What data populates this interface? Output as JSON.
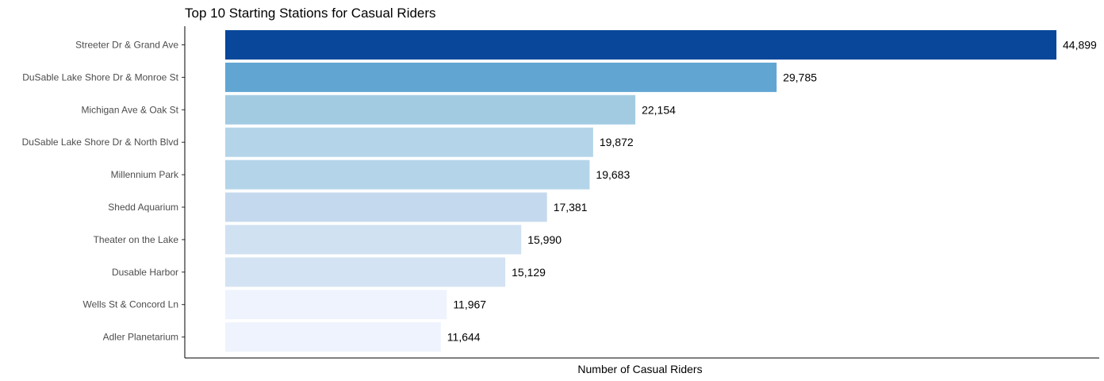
{
  "chart_data": {
    "type": "bar",
    "orientation": "horizontal",
    "title": "Top 10 Starting Stations for Casual Riders",
    "xlabel": "Number of Casual Riders",
    "ylabel": "",
    "grid": false,
    "legend": "none",
    "categories": [
      "Streeter Dr & Grand Ave",
      "DuSable Lake Shore Dr & Monroe St",
      "Michigan Ave & Oak St",
      "DuSable Lake Shore Dr & North Blvd",
      "Millennium Park",
      "Shedd Aquarium",
      "Theater on the Lake",
      "Dusable Harbor",
      "Wells St & Concord Ln",
      "Adler Planetarium"
    ],
    "values": [
      44899,
      29785,
      22154,
      19872,
      19683,
      17381,
      15990,
      15129,
      11967,
      11644
    ],
    "data_labels": [
      "44,899",
      "29,785",
      "22,154",
      "19,872",
      "19,683",
      "17,381",
      "15,990",
      "15,129",
      "11,967",
      "11,644"
    ],
    "colors": [
      "#08479a",
      "#61a5d3",
      "#a2cbe2",
      "#b4d4e9",
      "#b4d4e9",
      "#c5d9ee",
      "#d0e1f2",
      "#d4e3f3",
      "#eef3fd",
      "#eef3fd"
    ]
  }
}
